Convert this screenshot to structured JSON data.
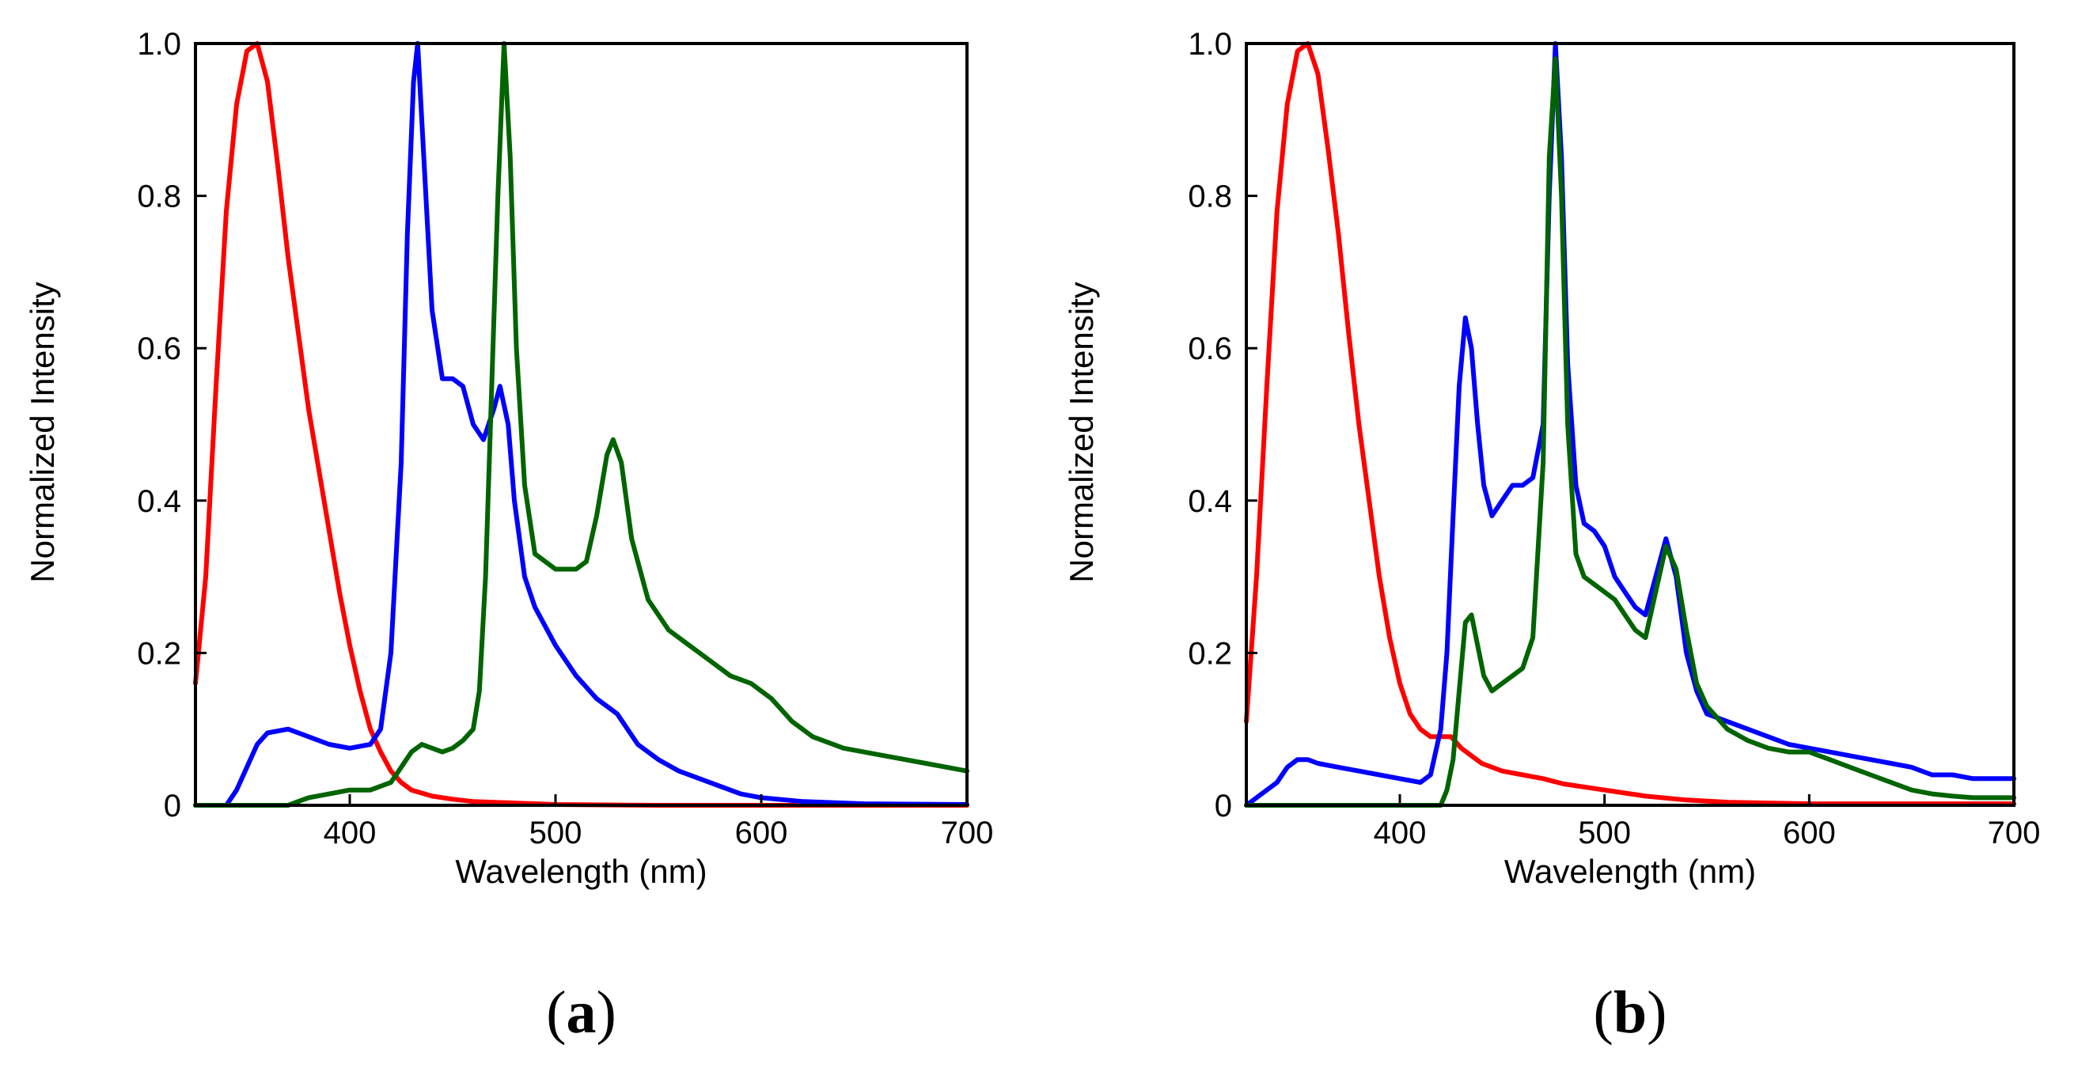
{
  "colors": {
    "red": "#ff0000",
    "blue": "#0000ff",
    "green": "#006400"
  },
  "chart_data": [
    {
      "type": "line",
      "panel_label": "a",
      "xlabel": "Wavelength (nm)",
      "ylabel": "Normalized Intensity",
      "xlim": [
        325,
        700
      ],
      "ylim": [
        0,
        1.0
      ],
      "xticks": [
        "400",
        "500",
        "600",
        "700"
      ],
      "yticks": [
        "0",
        "0.2",
        "0.4",
        "0.6",
        "0.8",
        "1.0"
      ],
      "series": [
        {
          "name": "red",
          "color": "#ff0000",
          "points": [
            [
              325,
              0.16
            ],
            [
              330,
              0.3
            ],
            [
              335,
              0.55
            ],
            [
              340,
              0.78
            ],
            [
              345,
              0.92
            ],
            [
              350,
              0.99
            ],
            [
              355,
              1.0
            ],
            [
              360,
              0.95
            ],
            [
              365,
              0.84
            ],
            [
              370,
              0.72
            ],
            [
              375,
              0.62
            ],
            [
              380,
              0.52
            ],
            [
              385,
              0.44
            ],
            [
              390,
              0.36
            ],
            [
              395,
              0.28
            ],
            [
              400,
              0.21
            ],
            [
              405,
              0.15
            ],
            [
              410,
              0.1
            ],
            [
              415,
              0.07
            ],
            [
              420,
              0.045
            ],
            [
              425,
              0.03
            ],
            [
              430,
              0.02
            ],
            [
              440,
              0.012
            ],
            [
              450,
              0.008
            ],
            [
              460,
              0.005
            ],
            [
              480,
              0.003
            ],
            [
              500,
              0.001
            ],
            [
              550,
              0
            ],
            [
              600,
              0
            ],
            [
              650,
              0
            ],
            [
              700,
              0
            ]
          ]
        },
        {
          "name": "blue",
          "color": "#0000ff",
          "points": [
            [
              325,
              0
            ],
            [
              340,
              0
            ],
            [
              345,
              0.02
            ],
            [
              350,
              0.05
            ],
            [
              355,
              0.08
            ],
            [
              360,
              0.095
            ],
            [
              370,
              0.1
            ],
            [
              380,
              0.09
            ],
            [
              390,
              0.08
            ],
            [
              400,
              0.075
            ],
            [
              410,
              0.08
            ],
            [
              415,
              0.1
            ],
            [
              420,
              0.2
            ],
            [
              425,
              0.45
            ],
            [
              428,
              0.75
            ],
            [
              431,
              0.95
            ],
            [
              433,
              1.0
            ],
            [
              436,
              0.85
            ],
            [
              440,
              0.65
            ],
            [
              445,
              0.56
            ],
            [
              450,
              0.56
            ],
            [
              455,
              0.55
            ],
            [
              460,
              0.5
            ],
            [
              465,
              0.48
            ],
            [
              470,
              0.52
            ],
            [
              473,
              0.55
            ],
            [
              477,
              0.5
            ],
            [
              480,
              0.4
            ],
            [
              485,
              0.3
            ],
            [
              490,
              0.26
            ],
            [
              500,
              0.21
            ],
            [
              510,
              0.17
            ],
            [
              520,
              0.14
            ],
            [
              530,
              0.12
            ],
            [
              540,
              0.08
            ],
            [
              550,
              0.06
            ],
            [
              560,
              0.045
            ],
            [
              570,
              0.035
            ],
            [
              580,
              0.025
            ],
            [
              590,
              0.015
            ],
            [
              600,
              0.01
            ],
            [
              620,
              0.005
            ],
            [
              650,
              0.002
            ],
            [
              700,
              0.001
            ]
          ]
        },
        {
          "name": "green",
          "color": "#006400",
          "points": [
            [
              325,
              0
            ],
            [
              370,
              0
            ],
            [
              380,
              0.01
            ],
            [
              390,
              0.015
            ],
            [
              400,
              0.02
            ],
            [
              410,
              0.02
            ],
            [
              420,
              0.03
            ],
            [
              425,
              0.05
            ],
            [
              430,
              0.07
            ],
            [
              435,
              0.08
            ],
            [
              440,
              0.075
            ],
            [
              445,
              0.07
            ],
            [
              450,
              0.075
            ],
            [
              455,
              0.085
            ],
            [
              460,
              0.1
            ],
            [
              463,
              0.15
            ],
            [
              466,
              0.3
            ],
            [
              469,
              0.55
            ],
            [
              472,
              0.8
            ],
            [
              475,
              1.0
            ],
            [
              478,
              0.85
            ],
            [
              481,
              0.6
            ],
            [
              485,
              0.42
            ],
            [
              490,
              0.33
            ],
            [
              500,
              0.31
            ],
            [
              510,
              0.31
            ],
            [
              515,
              0.32
            ],
            [
              520,
              0.38
            ],
            [
              525,
              0.46
            ],
            [
              528,
              0.48
            ],
            [
              532,
              0.45
            ],
            [
              537,
              0.35
            ],
            [
              545,
              0.27
            ],
            [
              555,
              0.23
            ],
            [
              565,
              0.21
            ],
            [
              575,
              0.19
            ],
            [
              585,
              0.17
            ],
            [
              595,
              0.16
            ],
            [
              605,
              0.14
            ],
            [
              615,
              0.11
            ],
            [
              625,
              0.09
            ],
            [
              640,
              0.075
            ],
            [
              660,
              0.065
            ],
            [
              680,
              0.055
            ],
            [
              700,
              0.045
            ]
          ]
        }
      ]
    },
    {
      "type": "line",
      "panel_label": "b",
      "xlabel": "Wavelength (nm)",
      "ylabel": "Normalized Intensity",
      "xlim": [
        325,
        700
      ],
      "ylim": [
        0,
        1.0
      ],
      "xticks": [
        "400",
        "500",
        "600",
        "700"
      ],
      "yticks": [
        "0",
        "0.2",
        "0.4",
        "0.6",
        "0.8",
        "1.0"
      ],
      "series": [
        {
          "name": "red",
          "color": "#ff0000",
          "points": [
            [
              325,
              0.11
            ],
            [
              330,
              0.3
            ],
            [
              335,
              0.55
            ],
            [
              340,
              0.78
            ],
            [
              345,
              0.92
            ],
            [
              350,
              0.99
            ],
            [
              355,
              1.0
            ],
            [
              360,
              0.96
            ],
            [
              365,
              0.86
            ],
            [
              370,
              0.75
            ],
            [
              375,
              0.62
            ],
            [
              380,
              0.5
            ],
            [
              385,
              0.4
            ],
            [
              390,
              0.3
            ],
            [
              395,
              0.22
            ],
            [
              400,
              0.16
            ],
            [
              405,
              0.12
            ],
            [
              410,
              0.1
            ],
            [
              415,
              0.09
            ],
            [
              420,
              0.09
            ],
            [
              425,
              0.09
            ],
            [
              430,
              0.075
            ],
            [
              440,
              0.055
            ],
            [
              450,
              0.045
            ],
            [
              460,
              0.04
            ],
            [
              470,
              0.035
            ],
            [
              480,
              0.028
            ],
            [
              500,
              0.02
            ],
            [
              520,
              0.012
            ],
            [
              540,
              0.007
            ],
            [
              560,
              0.004
            ],
            [
              600,
              0.002
            ],
            [
              650,
              0.002
            ],
            [
              700,
              0.002
            ]
          ]
        },
        {
          "name": "blue",
          "color": "#0000ff",
          "points": [
            [
              325,
              0
            ],
            [
              330,
              0.01
            ],
            [
              340,
              0.03
            ],
            [
              345,
              0.05
            ],
            [
              350,
              0.06
            ],
            [
              355,
              0.06
            ],
            [
              360,
              0.055
            ],
            [
              370,
              0.05
            ],
            [
              380,
              0.045
            ],
            [
              390,
              0.04
            ],
            [
              400,
              0.035
            ],
            [
              410,
              0.03
            ],
            [
              415,
              0.04
            ],
            [
              420,
              0.1
            ],
            [
              423,
              0.2
            ],
            [
              426,
              0.38
            ],
            [
              429,
              0.55
            ],
            [
              432,
              0.64
            ],
            [
              435,
              0.6
            ],
            [
              438,
              0.5
            ],
            [
              441,
              0.42
            ],
            [
              445,
              0.38
            ],
            [
              450,
              0.4
            ],
            [
              455,
              0.42
            ],
            [
              460,
              0.42
            ],
            [
              465,
              0.43
            ],
            [
              470,
              0.5
            ],
            [
              473,
              0.8
            ],
            [
              476,
              1.0
            ],
            [
              479,
              0.85
            ],
            [
              482,
              0.58
            ],
            [
              486,
              0.42
            ],
            [
              490,
              0.37
            ],
            [
              495,
              0.36
            ],
            [
              500,
              0.34
            ],
            [
              505,
              0.3
            ],
            [
              510,
              0.28
            ],
            [
              515,
              0.26
            ],
            [
              520,
              0.25
            ],
            [
              525,
              0.3
            ],
            [
              530,
              0.35
            ],
            [
              535,
              0.3
            ],
            [
              540,
              0.2
            ],
            [
              545,
              0.15
            ],
            [
              550,
              0.12
            ],
            [
              560,
              0.11
            ],
            [
              570,
              0.1
            ],
            [
              580,
              0.09
            ],
            [
              590,
              0.08
            ],
            [
              600,
              0.075
            ],
            [
              610,
              0.07
            ],
            [
              620,
              0.065
            ],
            [
              630,
              0.06
            ],
            [
              640,
              0.055
            ],
            [
              650,
              0.05
            ],
            [
              660,
              0.04
            ],
            [
              670,
              0.04
            ],
            [
              680,
              0.035
            ],
            [
              690,
              0.035
            ],
            [
              700,
              0.035
            ]
          ]
        },
        {
          "name": "green",
          "color": "#006400",
          "points": [
            [
              325,
              0
            ],
            [
              420,
              0
            ],
            [
              423,
              0.02
            ],
            [
              426,
              0.06
            ],
            [
              429,
              0.15
            ],
            [
              432,
              0.24
            ],
            [
              435,
              0.25
            ],
            [
              438,
              0.21
            ],
            [
              441,
              0.17
            ],
            [
              445,
              0.15
            ],
            [
              450,
              0.16
            ],
            [
              455,
              0.17
            ],
            [
              460,
              0.18
            ],
            [
              465,
              0.22
            ],
            [
              470,
              0.45
            ],
            [
              473,
              0.85
            ],
            [
              476,
              0.98
            ],
            [
              479,
              0.8
            ],
            [
              482,
              0.5
            ],
            [
              486,
              0.33
            ],
            [
              490,
              0.3
            ],
            [
              495,
              0.29
            ],
            [
              500,
              0.28
            ],
            [
              505,
              0.27
            ],
            [
              510,
              0.25
            ],
            [
              515,
              0.23
            ],
            [
              520,
              0.22
            ],
            [
              525,
              0.28
            ],
            [
              530,
              0.34
            ],
            [
              535,
              0.31
            ],
            [
              540,
              0.23
            ],
            [
              545,
              0.16
            ],
            [
              550,
              0.13
            ],
            [
              560,
              0.1
            ],
            [
              570,
              0.085
            ],
            [
              580,
              0.075
            ],
            [
              590,
              0.07
            ],
            [
              600,
              0.07
            ],
            [
              610,
              0.06
            ],
            [
              620,
              0.05
            ],
            [
              630,
              0.04
            ],
            [
              640,
              0.03
            ],
            [
              650,
              0.02
            ],
            [
              660,
              0.015
            ],
            [
              670,
              0.012
            ],
            [
              680,
              0.01
            ],
            [
              690,
              0.01
            ],
            [
              700,
              0.01
            ]
          ]
        }
      ]
    }
  ]
}
